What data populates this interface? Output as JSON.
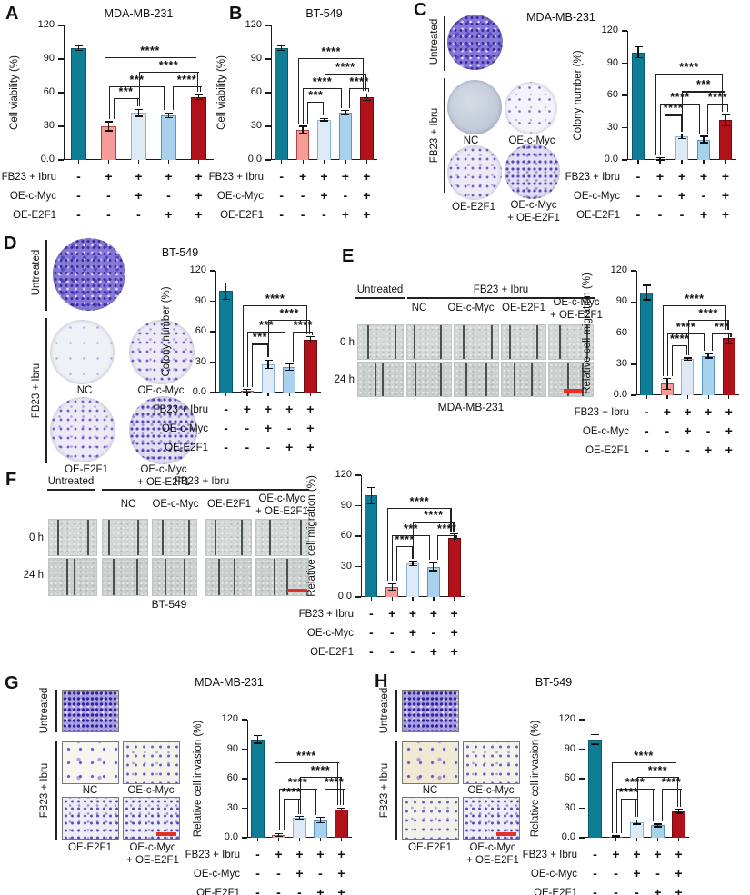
{
  "shared": {
    "condition_rows": [
      {
        "label": "FB23 + Ibru",
        "symbols": [
          "-",
          "+",
          "+",
          "+",
          "+"
        ]
      },
      {
        "label": "OE-c-Myc",
        "symbols": [
          "-",
          "-",
          "+",
          "-",
          "+"
        ]
      },
      {
        "label": "OE-E2F1",
        "symbols": [
          "-",
          "-",
          "-",
          "+",
          "+"
        ]
      }
    ],
    "yticks": [
      "120",
      "90",
      "60",
      "30",
      "0.0"
    ],
    "bar_colors": [
      {
        "fill": "#0e7d95",
        "stroke": "#09596c"
      },
      {
        "fill": "#f59c99",
        "stroke": "#b0453f"
      },
      {
        "fill": "#ddeaf6",
        "stroke": "#88b4d6"
      },
      {
        "fill": "#a8d1ee",
        "stroke": "#5795c4"
      },
      {
        "fill": "#b1121a",
        "stroke": "#6f0a0d"
      }
    ],
    "scale_bar_color": "#e43026"
  },
  "panels": {
    "A": {
      "letter": "A"
    },
    "B": {
      "letter": "B"
    },
    "C": {
      "letter": "C",
      "title": "MDA-MB-231",
      "untreated": "Untreated",
      "treatment": "FB23 + Ibru",
      "nc": "NC",
      "oe_myc": "OE-c-Myc",
      "oe_e2f1": "OE-E2F1",
      "combo_line1": "OE-c-Myc",
      "combo_line2": "+ OE-E2F1"
    },
    "D": {
      "letter": "D",
      "title": "BT-549",
      "untreated": "Untreated",
      "treatment": "FB23 + Ibru",
      "nc": "NC",
      "oe_myc": "OE-c-Myc",
      "oe_e2f1": "OE-E2F1",
      "combo_line1": "OE-c-Myc",
      "combo_line2": "+ OE-E2F1"
    },
    "E": {
      "letter": "E",
      "caption": "MDA-MB-231",
      "untreated": "Untreated",
      "treatment": "FB23 + Ibru",
      "nc": "NC",
      "oe_myc": "OE-c-Myc",
      "oe_e2f1": "OE-E2F1",
      "combo_line1": "OE-c-Myc",
      "combo_line2": "+ OE-E2F1",
      "time0": "0 h",
      "time24": "24 h"
    },
    "F": {
      "letter": "F",
      "caption": "BT-549",
      "untreated": "Untreated",
      "treatment": "FB23 + Ibru",
      "nc": "NC",
      "oe_myc": "OE-c-Myc",
      "oe_e2f1": "OE-E2F1",
      "combo_line1": "OE-c-Myc",
      "combo_line2": "+ OE-E2F1",
      "time0": "0 h",
      "time24": "24 h"
    },
    "G": {
      "letter": "G",
      "title": "MDA-MB-231",
      "untreated": "Untreated",
      "treatment": "FB23 + Ibru",
      "nc": "NC",
      "oe_myc": "OE-c-Myc",
      "oe_e2f1": "OE-E2F1",
      "combo_line1": "OE-c-Myc",
      "combo_line2": "+ OE-E2F1"
    },
    "H": {
      "letter": "H",
      "title": "BT-549",
      "untreated": "Untreated",
      "treatment": "FB23 + Ibru",
      "nc": "NC",
      "oe_myc": "OE-c-Myc",
      "oe_e2f1": "OE-E2F1",
      "combo_line1": "OE-c-Myc",
      "combo_line2": "+ OE-E2F1"
    }
  },
  "chart_data": [
    {
      "panel": "A",
      "type": "bar",
      "title": "MDA-MB-231",
      "ylabel": "Cell viability (%)",
      "ylim": [
        0,
        120
      ],
      "categories": [
        "Untreated",
        "FB23+Ibru",
        "FB23+Ibru+OE-c-Myc",
        "FB23+Ibru+OE-E2F1",
        "FB23+Ibru+OE-c-Myc+OE-E2F1"
      ],
      "values": [
        100,
        30,
        42,
        40,
        56
      ],
      "errors": [
        2,
        4,
        3,
        2,
        2
      ],
      "sig": [
        {
          "a": 1,
          "b": 2,
          "label": "***",
          "y": 55,
          "ax": 5,
          "bx": 0
        },
        {
          "a": 1,
          "b": 3,
          "label": "***",
          "y": 66,
          "ax": 0,
          "bx": -4
        },
        {
          "a": 3,
          "b": 4,
          "label": "****",
          "y": 66,
          "ax": 4,
          "bx": 3
        },
        {
          "a": 2,
          "b": 4,
          "label": "****",
          "y": 79,
          "ax": 0,
          "bx": 0
        },
        {
          "a": 1,
          "b": 4,
          "label": "****",
          "y": 92,
          "ax": -5,
          "bx": -3
        }
      ]
    },
    {
      "panel": "B",
      "type": "bar",
      "title": "BT-549",
      "ylabel": "Cell viability (%)",
      "ylim": [
        0,
        120
      ],
      "categories": [
        "Untreated",
        "FB23+Ibru",
        "FB23+Ibru+OE-c-Myc",
        "FB23+Ibru+OE-E2F1",
        "FB23+Ibru+OE-c-Myc+OE-E2F1"
      ],
      "values": [
        100,
        27,
        36,
        42,
        56
      ],
      "errors": [
        2,
        3,
        1,
        2,
        3
      ],
      "sig": [
        {
          "a": 1,
          "b": 2,
          "label": "***",
          "y": 52,
          "ax": 5,
          "bx": 0
        },
        {
          "a": 1,
          "b": 3,
          "label": "****",
          "y": 64,
          "ax": 0,
          "bx": -4
        },
        {
          "a": 3,
          "b": 4,
          "label": "****",
          "y": 64,
          "ax": 4,
          "bx": 3
        },
        {
          "a": 2,
          "b": 4,
          "label": "****",
          "y": 77,
          "ax": 0,
          "bx": 0
        },
        {
          "a": 1,
          "b": 4,
          "label": "****",
          "y": 91,
          "ax": -5,
          "bx": -3
        }
      ]
    },
    {
      "panel": "C",
      "type": "bar",
      "title": "MDA-MB-231",
      "ylabel": "Colony number (%)",
      "ylim": [
        0,
        120
      ],
      "categories": [
        "Untreated",
        "FB23+Ibru",
        "FB23+Ibru+OE-c-Myc",
        "FB23+Ibru+OE-E2F1",
        "FB23+Ibru+OE-c-Myc+OE-E2F1"
      ],
      "values": [
        100,
        1,
        22,
        19,
        37
      ],
      "errors": [
        5,
        1,
        2,
        3,
        5
      ],
      "sig": [
        {
          "a": 1,
          "b": 2,
          "label": "****",
          "y": 42,
          "ax": 5,
          "bx": 0
        },
        {
          "a": 1,
          "b": 3,
          "label": "****",
          "y": 52,
          "ax": 0,
          "bx": -4
        },
        {
          "a": 3,
          "b": 4,
          "label": "****",
          "y": 52,
          "ax": 4,
          "bx": 3
        },
        {
          "a": 2,
          "b": 4,
          "label": "***",
          "y": 64,
          "ax": 0,
          "bx": 0
        },
        {
          "a": 1,
          "b": 4,
          "label": "****",
          "y": 80,
          "ax": -5,
          "bx": -3
        }
      ]
    },
    {
      "panel": "D",
      "type": "bar",
      "title": "BT-549",
      "ylabel": "Colony number (%)",
      "ylim": [
        0,
        120
      ],
      "categories": [
        "Untreated",
        "FB23+Ibru",
        "FB23+Ibru+OE-c-Myc",
        "FB23+Ibru+OE-E2F1",
        "FB23+Ibru+OE-c-Myc+OE-E2F1"
      ],
      "values": [
        100,
        1.5,
        28,
        25,
        52
      ],
      "errors": [
        8,
        1.5,
        4,
        3,
        3
      ],
      "sig": [
        {
          "a": 1,
          "b": 2,
          "label": "***",
          "y": 48,
          "ax": 5,
          "bx": 0
        },
        {
          "a": 1,
          "b": 3,
          "label": "***",
          "y": 60,
          "ax": 0,
          "bx": -4
        },
        {
          "a": 3,
          "b": 4,
          "label": "****",
          "y": 60,
          "ax": 4,
          "bx": 3
        },
        {
          "a": 2,
          "b": 4,
          "label": "****",
          "y": 72,
          "ax": 0,
          "bx": 0
        },
        {
          "a": 1,
          "b": 4,
          "label": "****",
          "y": 86,
          "ax": -5,
          "bx": -3
        }
      ]
    },
    {
      "panel": "E",
      "type": "bar",
      "title": "MDA-MB-231",
      "ylabel": "Relative cell migration (%)",
      "ylim": [
        0,
        120
      ],
      "categories": [
        "Untreated",
        "FB23+Ibru",
        "FB23+Ibru+OE-c-Myc",
        "FB23+Ibru+OE-E2F1",
        "FB23+Ibru+OE-c-Myc+OE-E2F1"
      ],
      "values": [
        99,
        11,
        35,
        38,
        55
      ],
      "errors": [
        7,
        5,
        1,
        2,
        5
      ],
      "sig": [
        {
          "a": 1,
          "b": 2,
          "label": "****",
          "y": 48,
          "ax": 5,
          "bx": 0
        },
        {
          "a": 1,
          "b": 3,
          "label": "****",
          "y": 60,
          "ax": 0,
          "bx": -4
        },
        {
          "a": 3,
          "b": 4,
          "label": "***",
          "y": 60,
          "ax": 4,
          "bx": 3
        },
        {
          "a": 2,
          "b": 4,
          "label": "****",
          "y": 73,
          "ax": 0,
          "bx": 0
        },
        {
          "a": 1,
          "b": 4,
          "label": "****",
          "y": 87,
          "ax": -5,
          "bx": -3
        }
      ]
    },
    {
      "panel": "F",
      "type": "bar",
      "title": "BT-549",
      "ylabel": "Relative cell migration (%)",
      "ylim": [
        0,
        120
      ],
      "categories": [
        "Untreated",
        "FB23+Ibru",
        "FB23+Ibru+OE-c-Myc",
        "FB23+Ibru+OE-E2F1",
        "FB23+Ibru+OE-c-Myc+OE-E2F1"
      ],
      "values": [
        100,
        10,
        33,
        30,
        58
      ],
      "errors": [
        8,
        3,
        2,
        4,
        4
      ],
      "sig": [
        {
          "a": 1,
          "b": 2,
          "label": "****",
          "y": 50,
          "ax": 5,
          "bx": 0
        },
        {
          "a": 1,
          "b": 3,
          "label": "***",
          "y": 61,
          "ax": 0,
          "bx": -4
        },
        {
          "a": 3,
          "b": 4,
          "label": "****",
          "y": 61,
          "ax": 4,
          "bx": 3
        },
        {
          "a": 2,
          "b": 4,
          "label": "****",
          "y": 74,
          "ax": 0,
          "bx": 0
        },
        {
          "a": 1,
          "b": 4,
          "label": "****",
          "y": 88,
          "ax": -5,
          "bx": -3
        }
      ]
    },
    {
      "panel": "G",
      "type": "bar",
      "title": "MDA-MB-231",
      "ylabel": "Relative cell invasion (%)",
      "ylim": [
        0,
        120
      ],
      "categories": [
        "Untreated",
        "FB23+Ibru",
        "FB23+Ibru+OE-c-Myc",
        "FB23+Ibru+OE-E2F1",
        "FB23+Ibru+OE-c-Myc+OE-E2F1"
      ],
      "values": [
        100,
        3,
        20,
        18,
        29
      ],
      "errors": [
        4,
        1.5,
        1.5,
        2.5,
        1
      ],
      "sig": [
        {
          "a": 1,
          "b": 2,
          "label": "****",
          "y": 40,
          "ax": 5,
          "bx": 0
        },
        {
          "a": 1,
          "b": 3,
          "label": "****",
          "y": 50,
          "ax": 0,
          "bx": -4
        },
        {
          "a": 3,
          "b": 4,
          "label": "****",
          "y": 50,
          "ax": 4,
          "bx": 3
        },
        {
          "a": 2,
          "b": 4,
          "label": "****",
          "y": 62,
          "ax": 0,
          "bx": 0
        },
        {
          "a": 1,
          "b": 4,
          "label": "****",
          "y": 77,
          "ax": -5,
          "bx": -3
        }
      ]
    },
    {
      "panel": "H",
      "type": "bar",
      "title": "BT-549",
      "ylabel": "Relative cell invasion (%)",
      "ylim": [
        0,
        120
      ],
      "categories": [
        "Untreated",
        "FB23+Ibru",
        "FB23+Ibru+OE-c-Myc",
        "FB23+Ibru+OE-E2F1",
        "FB23+Ibru+OE-c-Myc+OE-E2F1"
      ],
      "values": [
        100,
        1,
        16,
        12.5,
        27
      ],
      "errors": [
        5,
        0.8,
        2,
        1.5,
        2
      ],
      "sig": [
        {
          "a": 1,
          "b": 2,
          "label": "****",
          "y": 40,
          "ax": 5,
          "bx": 0
        },
        {
          "a": 1,
          "b": 3,
          "label": "****",
          "y": 50,
          "ax": 0,
          "bx": -4
        },
        {
          "a": 3,
          "b": 4,
          "label": "****",
          "y": 50,
          "ax": 4,
          "bx": 3
        },
        {
          "a": 2,
          "b": 4,
          "label": "****",
          "y": 62,
          "ax": 0,
          "bx": 0
        },
        {
          "a": 1,
          "b": 4,
          "label": "****",
          "y": 77,
          "ax": -5,
          "bx": -3
        }
      ]
    }
  ]
}
